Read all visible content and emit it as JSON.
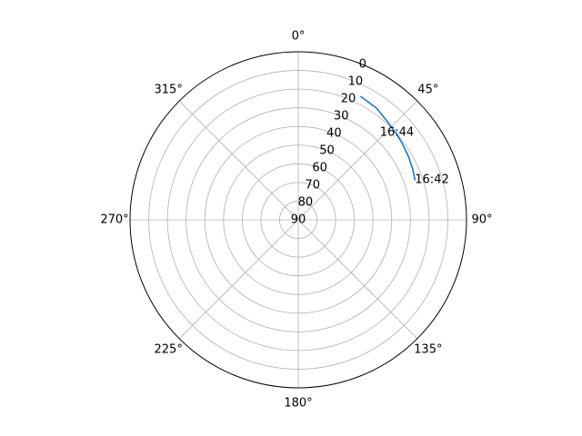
{
  "chart_data": {
    "type": "line",
    "projection": "polar",
    "theta_zero_location": "N",
    "theta_direction": "clockwise",
    "radial_axis_inverted": true,
    "r_range": [
      90,
      0
    ],
    "grid": true,
    "theta_ticks": [
      {
        "deg": 0,
        "label": "0°"
      },
      {
        "deg": 45,
        "label": "45°"
      },
      {
        "deg": 90,
        "label": "90°"
      },
      {
        "deg": 135,
        "label": "135°"
      },
      {
        "deg": 180,
        "label": "180°"
      },
      {
        "deg": 225,
        "label": "225°"
      },
      {
        "deg": 270,
        "label": "270°"
      },
      {
        "deg": 315,
        "label": "315°"
      }
    ],
    "r_ticks": [
      {
        "value": 0,
        "label": "0"
      },
      {
        "value": 10,
        "label": "10"
      },
      {
        "value": 20,
        "label": "20"
      },
      {
        "value": 30,
        "label": "30"
      },
      {
        "value": 40,
        "label": "40"
      },
      {
        "value": 50,
        "label": "50"
      },
      {
        "value": 60,
        "label": "60"
      },
      {
        "value": 70,
        "label": "70"
      },
      {
        "value": 80,
        "label": "80"
      },
      {
        "value": 90,
        "label": "90"
      }
    ],
    "series": [
      {
        "color": "#1f77b4",
        "points": [
          {
            "theta": 27,
            "r": 16
          },
          {
            "theta": 35,
            "r": 17
          },
          {
            "theta": 42,
            "r": 19
          },
          {
            "theta": 48,
            "r": 20
          },
          {
            "theta": 54,
            "r": 21
          },
          {
            "theta": 60,
            "r": 22
          },
          {
            "theta": 66,
            "r": 23
          },
          {
            "theta": 71,
            "r": 24
          }
        ]
      }
    ],
    "annotations": [
      {
        "theta": 43,
        "r": 26,
        "text": "16:44"
      },
      {
        "theta": 71,
        "r": 24,
        "text": "16:42"
      }
    ]
  }
}
